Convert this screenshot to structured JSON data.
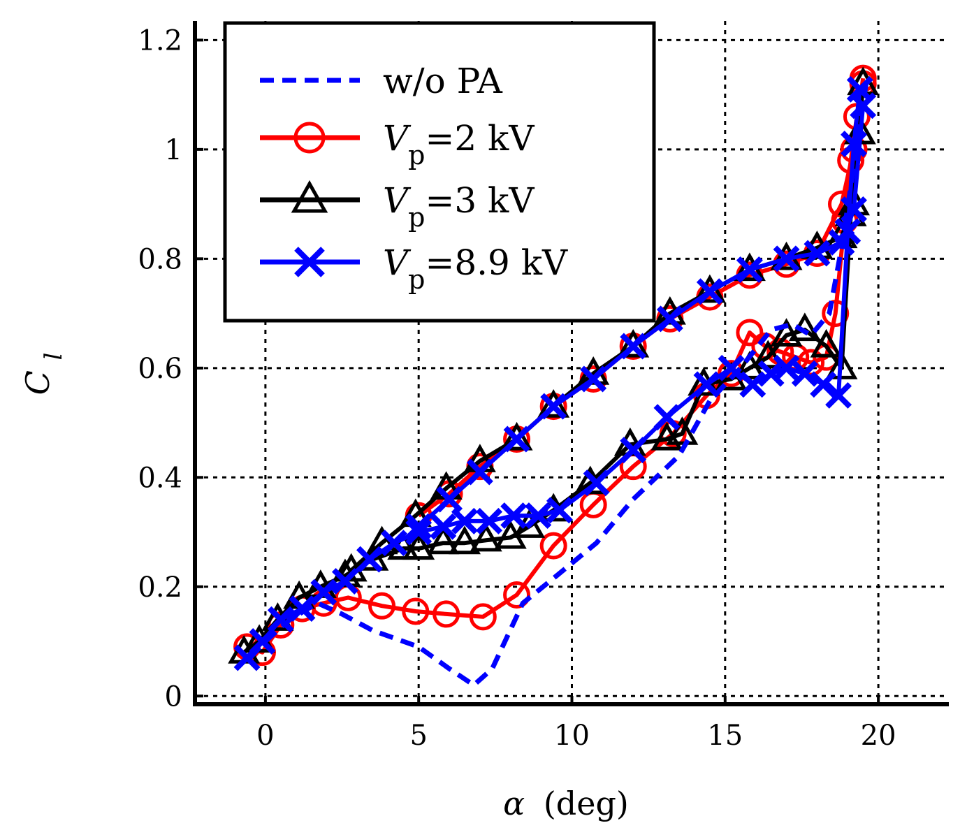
{
  "chart_data": {
    "type": "line",
    "title": "",
    "xlabel_symbol": "α",
    "xlabel_unit": "(deg)",
    "ylabel_main": "C",
    "ylabel_sub": "l",
    "xlim": [
      -2.3,
      22.3
    ],
    "ylim": [
      -0.015,
      1.235
    ],
    "xticks": [
      0,
      5,
      10,
      15,
      20
    ],
    "yticks": [
      0,
      0.2,
      0.4,
      0.6,
      0.8,
      1,
      1.2
    ],
    "xtick_labels": [
      "0",
      "5",
      "10",
      "15",
      "20"
    ],
    "ytick_labels": [
      "0",
      "0.2",
      "0.4",
      "0.6",
      "0.8",
      "1",
      "1.2"
    ],
    "grid": true,
    "legend_position": "top-left",
    "series": [
      {
        "name": "w/o PA",
        "legend_parts": {
          "main": "w/o PA",
          "var": "",
          "sub": "",
          "rest": ""
        },
        "color": "#0000ff",
        "line": "dashed",
        "marker": "none",
        "x": [
          -0.5,
          0,
          0.8,
          1.7,
          2.5,
          3.5,
          5,
          6,
          6.8,
          7.4,
          8.4,
          9.5,
          10.8,
          12,
          13.5,
          14.5,
          15.5,
          16.5,
          17.2,
          17.8,
          18.4,
          18.8,
          19.2,
          19.6
        ],
        "y": [
          0.07,
          0.1,
          0.14,
          0.17,
          0.15,
          0.12,
          0.09,
          0.05,
          0.02,
          0.05,
          0.17,
          0.22,
          0.28,
          0.36,
          0.44,
          0.54,
          0.6,
          0.67,
          0.68,
          0.66,
          0.7,
          0.82,
          0.97,
          1.12
        ]
      },
      {
        "name": "Vp=2 kV",
        "legend_parts": {
          "main": "",
          "var": "V",
          "sub": "p",
          "rest": "=2 kV"
        },
        "color": "#ff0000",
        "line": "solid",
        "marker": "circle",
        "x": [
          -0.6,
          -0.1,
          0.5,
          1.2,
          1.9,
          2.7,
          3.8,
          4.9,
          5.9,
          7.1,
          8.2,
          9.4,
          10.7,
          12,
          13.3,
          14.4,
          15.2,
          15.8,
          16.3,
          16.8,
          17.3,
          17.8,
          18.3,
          18.6,
          18.9,
          19.1,
          19.3,
          19.5
        ],
        "y": [
          0.09,
          0.08,
          0.13,
          0.16,
          0.17,
          0.18,
          0.165,
          0.155,
          0.15,
          0.145,
          0.185,
          0.275,
          0.35,
          0.42,
          0.48,
          0.55,
          0.59,
          0.665,
          0.64,
          0.63,
          0.62,
          0.61,
          0.62,
          0.7,
          0.87,
          0.98,
          1.06,
          1.12
        ],
        "upper_x": [
          5,
          6,
          7,
          8.2,
          9.4,
          10.7,
          12,
          13.2,
          14.5,
          15.8,
          17,
          18,
          18.8,
          19.2,
          19.5
        ],
        "upper_y": [
          0.33,
          0.37,
          0.42,
          0.47,
          0.53,
          0.58,
          0.64,
          0.69,
          0.73,
          0.77,
          0.79,
          0.81,
          0.9,
          1.0,
          1.13
        ]
      },
      {
        "name": "Vp=3 kV",
        "legend_parts": {
          "main": "",
          "var": "V",
          "sub": "p",
          "rest": "=3 kV"
        },
        "color": "#000000",
        "line": "solid",
        "marker": "triangle",
        "x": [
          -0.7,
          -0.2,
          0.4,
          1.1,
          1.8,
          2.6,
          3.5,
          4.5,
          5,
          5.8,
          6.5,
          7.2,
          8,
          8.6,
          9.4,
          10.6,
          11.9,
          13.1,
          13.6,
          14.3,
          15.2,
          15.8,
          16.4,
          17,
          17.6,
          18.3,
          18.8,
          19.1,
          19.4
        ],
        "y": [
          0.08,
          0.1,
          0.14,
          0.18,
          0.2,
          0.22,
          0.25,
          0.27,
          0.27,
          0.28,
          0.28,
          0.285,
          0.29,
          0.31,
          0.34,
          0.39,
          0.46,
          0.47,
          0.48,
          0.57,
          0.58,
          0.6,
          0.62,
          0.66,
          0.67,
          0.64,
          0.6,
          0.88,
          1.03
        ],
        "upper_x": [
          2.8,
          3.8,
          4.9,
          5.9,
          7,
          8.2,
          9.4,
          10.7,
          12,
          13.2,
          14.5,
          15.8,
          17,
          18,
          18.8,
          19.2,
          19.5
        ],
        "upper_y": [
          0.23,
          0.28,
          0.33,
          0.38,
          0.43,
          0.47,
          0.53,
          0.59,
          0.64,
          0.7,
          0.74,
          0.78,
          0.8,
          0.82,
          0.84,
          0.9,
          1.12
        ]
      },
      {
        "name": "Vp=8.9 kV",
        "legend_parts": {
          "main": "",
          "var": "V",
          "sub": "p",
          "rest": "=8.9 kV"
        },
        "color": "#0000ff",
        "line": "solid",
        "marker": "x",
        "x": [
          -0.6,
          -0.1,
          0.5,
          1.2,
          1.9,
          2.6,
          3.4,
          4.2,
          5,
          5.8,
          6.5,
          7.3,
          8.1,
          8.9,
          9.6,
          10.8,
          12,
          13.1,
          14.4,
          15.2,
          15.9,
          16.5,
          17,
          17.6,
          18.2,
          18.7,
          19,
          19.2,
          19.4
        ],
        "y": [
          0.07,
          0.1,
          0.14,
          0.16,
          0.19,
          0.21,
          0.25,
          0.28,
          0.3,
          0.31,
          0.32,
          0.32,
          0.33,
          0.33,
          0.34,
          0.39,
          0.45,
          0.51,
          0.57,
          0.6,
          0.57,
          0.59,
          0.6,
          0.59,
          0.57,
          0.55,
          0.85,
          1.01,
          1.11
        ],
        "upper_x": [
          5,
          6,
          7,
          8.2,
          9.4,
          10.7,
          12,
          13.2,
          14.5,
          15.8,
          17,
          18,
          18.8,
          19.2,
          19.5
        ],
        "upper_y": [
          0.31,
          0.36,
          0.41,
          0.47,
          0.53,
          0.58,
          0.64,
          0.69,
          0.74,
          0.78,
          0.8,
          0.81,
          0.83,
          0.89,
          1.08
        ]
      }
    ]
  }
}
